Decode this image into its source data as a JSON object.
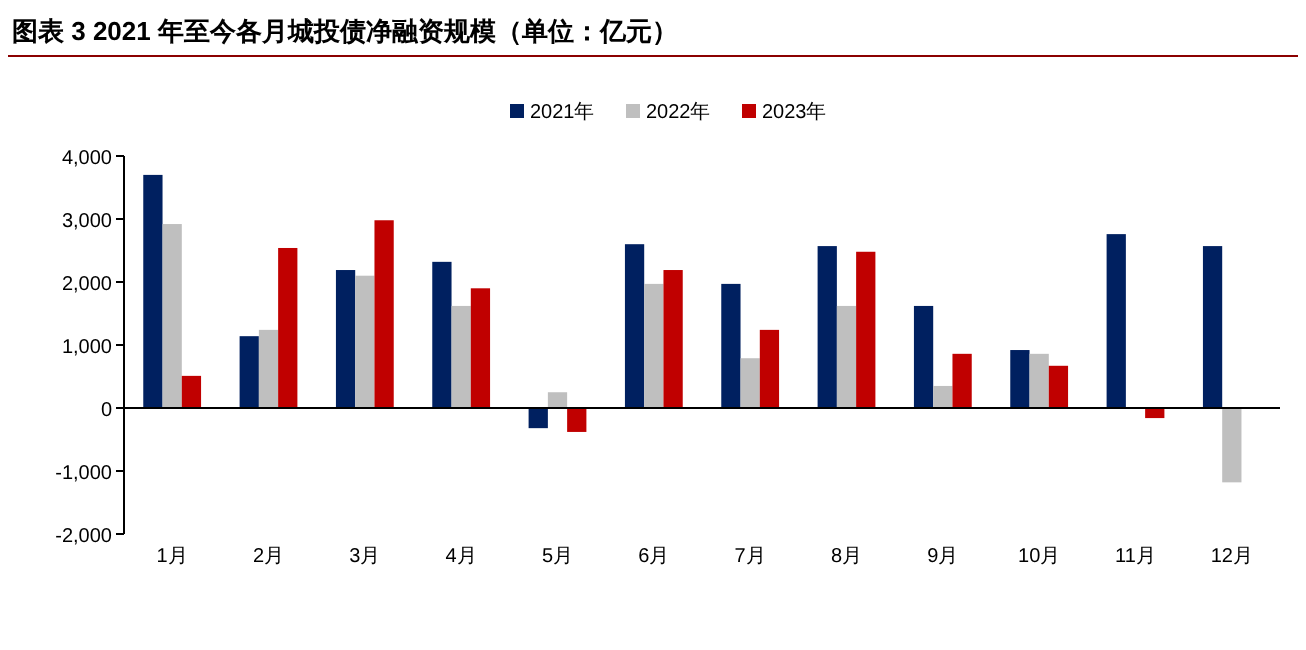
{
  "chart_data": {
    "type": "bar",
    "title": "图表 3 2021 年至今各月城投债净融资规模（单位：亿元）",
    "categories": [
      "1月",
      "2月",
      "3月",
      "4月",
      "5月",
      "6月",
      "7月",
      "8月",
      "9月",
      "10月",
      "11月",
      "12月"
    ],
    "series": [
      {
        "name": "2021年",
        "color": "#002060",
        "values": [
          3700,
          1140,
          2190,
          2320,
          -320,
          2600,
          1970,
          2570,
          1620,
          920,
          2760,
          2570
        ]
      },
      {
        "name": "2022年",
        "color": "#bfbfbf",
        "values": [
          2920,
          1240,
          2100,
          1620,
          250,
          1970,
          790,
          1620,
          350,
          860,
          null,
          -1180
        ]
      },
      {
        "name": "2023年",
        "color": "#c00000",
        "values": [
          510,
          2540,
          2980,
          1900,
          -380,
          2190,
          1240,
          2480,
          860,
          670,
          -160,
          null
        ]
      }
    ],
    "ylim": [
      -2000,
      4000
    ],
    "yticks": [
      {
        "value": -2000,
        "label": "-2,000"
      },
      {
        "value": -1000,
        "label": "-1,000"
      },
      0,
      {
        "value": 1000,
        "label": "1,000"
      },
      {
        "value": 2000,
        "label": "2,000"
      },
      {
        "value": 3000,
        "label": "3,000"
      },
      {
        "value": 4000,
        "label": "4,000"
      }
    ],
    "legend": "top"
  }
}
